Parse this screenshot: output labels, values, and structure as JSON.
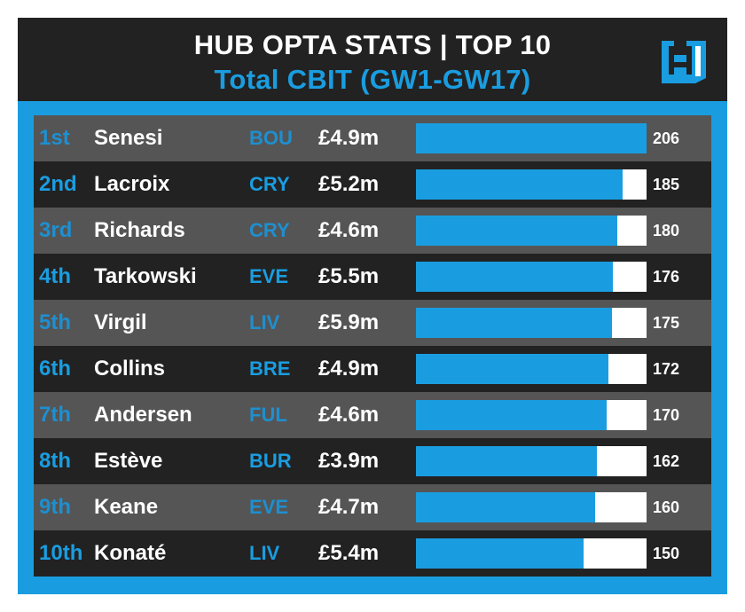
{
  "header": {
    "title": "HUB OPTA STATS | TOP 10",
    "subtitle": "Total CBIT (GW1-GW17)"
  },
  "logo": {
    "icon": "hub-logo-icon",
    "letter": "H"
  },
  "colors": {
    "accent": "#1a9de0",
    "background": "#222222",
    "row_light": "#555555",
    "row_dark": "#222222",
    "bar_track": "#ffffff",
    "text": "#ffffff"
  },
  "chart_data": {
    "type": "bar",
    "title": "HUB OPTA STATS | TOP 10",
    "subtitle": "Total CBIT (GW1-GW17)",
    "orientation": "horizontal",
    "xlim": [
      0,
      206
    ],
    "categories": [
      "Senesi",
      "Lacroix",
      "Richards",
      "Tarkowski",
      "Virgil",
      "Collins",
      "Andersen",
      "Estève",
      "Keane",
      "Konaté"
    ],
    "values": [
      206,
      185,
      180,
      176,
      175,
      172,
      170,
      162,
      160,
      150
    ],
    "rows": [
      {
        "rank": "1st",
        "player": "Senesi",
        "team": "BOU",
        "price": "£4.9m",
        "cbit": 206
      },
      {
        "rank": "2nd",
        "player": "Lacroix",
        "team": "CRY",
        "price": "£5.2m",
        "cbit": 185
      },
      {
        "rank": "3rd",
        "player": "Richards",
        "team": "CRY",
        "price": "£4.6m",
        "cbit": 180
      },
      {
        "rank": "4th",
        "player": "Tarkowski",
        "team": "EVE",
        "price": "£5.5m",
        "cbit": 176
      },
      {
        "rank": "5th",
        "player": "Virgil",
        "team": "LIV",
        "price": "£5.9m",
        "cbit": 175
      },
      {
        "rank": "6th",
        "player": "Collins",
        "team": "BRE",
        "price": "£4.9m",
        "cbit": 172
      },
      {
        "rank": "7th",
        "player": "Andersen",
        "team": "FUL",
        "price": "£4.6m",
        "cbit": 170
      },
      {
        "rank": "8th",
        "player": "Estève",
        "team": "BUR",
        "price": "£3.9m",
        "cbit": 162
      },
      {
        "rank": "9th",
        "player": "Keane",
        "team": "EVE",
        "price": "£4.7m",
        "cbit": 160
      },
      {
        "rank": "10th",
        "player": "Konaté",
        "team": "LIV",
        "price": "£5.4m",
        "cbit": 150
      }
    ]
  }
}
